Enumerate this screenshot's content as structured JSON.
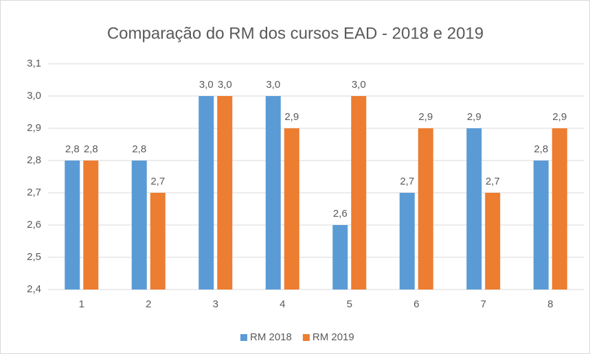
{
  "chart_data": {
    "type": "bar",
    "title": "Comparação do RM dos cursos EAD - 2018 e 2019",
    "categories": [
      "1",
      "2",
      "3",
      "4",
      "5",
      "6",
      "7",
      "8"
    ],
    "series": [
      {
        "name": "RM 2018",
        "color": "#5b9bd5",
        "values": [
          2.8,
          2.8,
          3.0,
          3.0,
          2.6,
          2.7,
          2.9,
          2.8
        ],
        "value_labels": [
          "2,8",
          "2,8",
          "3,0",
          "3,0",
          "2,6",
          "2,7",
          "2,9",
          "2,8"
        ]
      },
      {
        "name": "RM 2019",
        "color": "#ed7d31",
        "values": [
          2.8,
          2.7,
          3.0,
          2.9,
          3.0,
          2.9,
          2.7,
          2.9
        ],
        "value_labels": [
          "2,8",
          "2,7",
          "3,0",
          "2,9",
          "3,0",
          "2,9",
          "2,7",
          "2,9"
        ]
      }
    ],
    "ylim": [
      2.4,
      3.1
    ],
    "yticks": [
      {
        "value": 2.4,
        "label": "2,4"
      },
      {
        "value": 2.5,
        "label": "2,5"
      },
      {
        "value": 2.6,
        "label": "2,6"
      },
      {
        "value": 2.7,
        "label": "2,7"
      },
      {
        "value": 2.8,
        "label": "2,8"
      },
      {
        "value": 2.9,
        "label": "2,9"
      },
      {
        "value": 3.0,
        "label": "3,0"
      },
      {
        "value": 3.1,
        "label": "3,1"
      }
    ],
    "grid": true,
    "legend": "bottom"
  }
}
